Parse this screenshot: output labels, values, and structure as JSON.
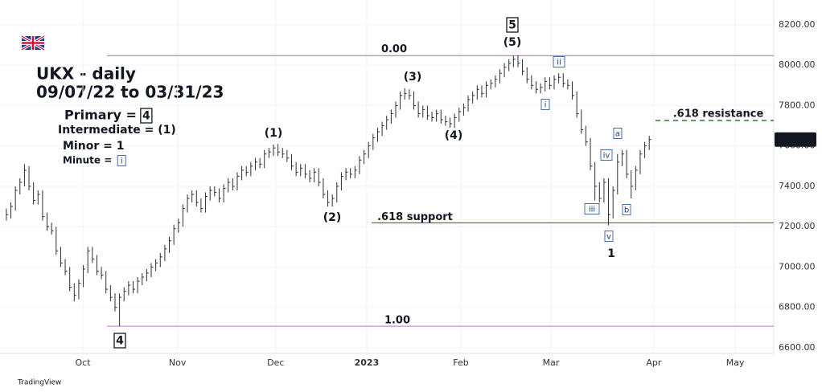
{
  "chart_data": {
    "type": "ohlc",
    "title": "UKX - daily",
    "subtitle": "09/07/22 to 03/31/23",
    "legend_lines": [
      {
        "text": "Primary =",
        "box": "4"
      },
      {
        "text": "Intermediate = (1)"
      },
      {
        "text": "Minor = 1"
      },
      {
        "text": "Minute =",
        "box": "i"
      }
    ],
    "footer": "TradingView",
    "color": "#2a2e39",
    "xlim": [
      -1.4,
      169.5
    ],
    "ylim": [
      6572,
      8323
    ],
    "yticks": [
      {
        "value": 6600,
        "label": "6600.00"
      },
      {
        "value": 6800,
        "label": "6800.00"
      },
      {
        "value": 7000,
        "label": "7000.00"
      },
      {
        "value": 7200,
        "label": "7200.00"
      },
      {
        "value": 7400,
        "label": "7400.00"
      },
      {
        "value": 7600,
        "label": "7600.00"
      },
      {
        "value": 7800,
        "label": "7800.00"
      },
      {
        "value": 8000,
        "label": "8000.00"
      },
      {
        "value": 8200,
        "label": "8200.00"
      }
    ],
    "xticks": [
      {
        "value": 16.9,
        "label": "Oct"
      },
      {
        "value": 37.8,
        "label": "Nov"
      },
      {
        "value": 59.5,
        "label": "Dec"
      },
      {
        "value": 79.6,
        "label": "2023"
      },
      {
        "value": 100.4,
        "label": "Feb"
      },
      {
        "value": 120.3,
        "label": "Mar"
      },
      {
        "value": 143,
        "label": "Apr"
      },
      {
        "value": 161,
        "label": "May"
      }
    ],
    "last_price": 7631.75,
    "levels": [
      {
        "label": "0.00",
        "value": 8047,
        "color": "#c77dd7"
      },
      {
        "label": "1.00",
        "value": 6707,
        "color": "#c77dd7"
      },
      {
        "label": ".618 support",
        "value": 7219,
        "color": "#2e7d32"
      },
      {
        "label": ".618 resistance",
        "value": 7726,
        "color": "#2e7d32",
        "dashed": true
      }
    ],
    "annotations": [
      {
        "text": "5",
        "boxed": true
      },
      {
        "text": "(5)"
      },
      {
        "text": "ii",
        "boxed": true
      },
      {
        "text": "(3)"
      },
      {
        "text": "i",
        "boxed": true
      },
      {
        "text": "a",
        "boxed": true
      },
      {
        "text": "(1)"
      },
      {
        "text": "(4)"
      },
      {
        "text": "iv",
        "boxed": true
      },
      {
        "text": "iii",
        "boxed": true
      },
      {
        "text": "b",
        "boxed": true
      },
      {
        "text": "(2)"
      },
      {
        "text": "v",
        "boxed": true
      },
      {
        "text": "1"
      },
      {
        "text": "4",
        "boxed": true
      }
    ],
    "bars": [
      [
        7290,
        7230,
        7260
      ],
      [
        7320,
        7240,
        7300
      ],
      [
        7400,
        7280,
        7380
      ],
      [
        7440,
        7360,
        7420
      ],
      [
        7510,
        7400,
        7480
      ],
      [
        7500,
        7380,
        7400
      ],
      [
        7420,
        7310,
        7330
      ],
      [
        7380,
        7310,
        7360
      ],
      [
        7380,
        7230,
        7250
      ],
      [
        7270,
        7180,
        7200
      ],
      [
        7220,
        7160,
        7180
      ],
      [
        7200,
        7060,
        7080
      ],
      [
        7100,
        7000,
        7020
      ],
      [
        7040,
        6960,
        6980
      ],
      [
        7000,
        6880,
        6900
      ],
      [
        6920,
        6830,
        6860
      ],
      [
        6940,
        6840,
        6920
      ],
      [
        7010,
        6900,
        6990
      ],
      [
        7100,
        6970,
        7080
      ],
      [
        7100,
        7020,
        7040
      ],
      [
        7060,
        6960,
        6980
      ],
      [
        7000,
        6940,
        6960
      ],
      [
        6980,
        6870,
        6890
      ],
      [
        6910,
        6830,
        6850
      ],
      [
        6870,
        6780,
        6800
      ],
      [
        6870,
        6707,
        6850
      ],
      [
        6900,
        6830,
        6880
      ],
      [
        6930,
        6860,
        6910
      ],
      [
        6930,
        6870,
        6890
      ],
      [
        6950,
        6870,
        6930
      ],
      [
        6970,
        6910,
        6950
      ],
      [
        6990,
        6930,
        6970
      ],
      [
        7020,
        6950,
        7000
      ],
      [
        7040,
        6980,
        7020
      ],
      [
        7070,
        7000,
        7050
      ],
      [
        7110,
        7030,
        7090
      ],
      [
        7150,
        7070,
        7130
      ],
      [
        7210,
        7110,
        7190
      ],
      [
        7240,
        7170,
        7220
      ],
      [
        7310,
        7200,
        7290
      ],
      [
        7360,
        7270,
        7340
      ],
      [
        7380,
        7320,
        7360
      ],
      [
        7380,
        7300,
        7320
      ],
      [
        7340,
        7270,
        7290
      ],
      [
        7370,
        7270,
        7350
      ],
      [
        7400,
        7330,
        7380
      ],
      [
        7400,
        7350,
        7370
      ],
      [
        7390,
        7320,
        7340
      ],
      [
        7410,
        7320,
        7390
      ],
      [
        7440,
        7370,
        7420
      ],
      [
        7440,
        7380,
        7400
      ],
      [
        7470,
        7380,
        7450
      ],
      [
        7500,
        7430,
        7480
      ],
      [
        7500,
        7450,
        7470
      ],
      [
        7520,
        7450,
        7500
      ],
      [
        7540,
        7480,
        7520
      ],
      [
        7540,
        7490,
        7510
      ],
      [
        7580,
        7490,
        7560
      ],
      [
        7590,
        7540,
        7570
      ],
      [
        7607,
        7550,
        7590
      ],
      [
        7610,
        7550,
        7570
      ],
      [
        7590,
        7540,
        7560
      ],
      [
        7580,
        7520,
        7540
      ],
      [
        7560,
        7480,
        7500
      ],
      [
        7520,
        7450,
        7470
      ],
      [
        7510,
        7450,
        7490
      ],
      [
        7510,
        7440,
        7460
      ],
      [
        7480,
        7420,
        7440
      ],
      [
        7490,
        7420,
        7470
      ],
      [
        7490,
        7400,
        7420
      ],
      [
        7440,
        7340,
        7360
      ],
      [
        7380,
        7300,
        7320
      ],
      [
        7360,
        7300,
        7340
      ],
      [
        7420,
        7320,
        7400
      ],
      [
        7470,
        7380,
        7450
      ],
      [
        7490,
        7430,
        7470
      ],
      [
        7490,
        7440,
        7460
      ],
      [
        7500,
        7440,
        7480
      ],
      [
        7550,
        7460,
        7530
      ],
      [
        7580,
        7510,
        7560
      ],
      [
        7620,
        7540,
        7600
      ],
      [
        7660,
        7580,
        7640
      ],
      [
        7690,
        7620,
        7670
      ],
      [
        7720,
        7650,
        7700
      ],
      [
        7750,
        7680,
        7730
      ],
      [
        7780,
        7710,
        7760
      ],
      [
        7820,
        7740,
        7800
      ],
      [
        7870,
        7780,
        7850
      ],
      [
        7886,
        7830,
        7860
      ],
      [
        7880,
        7830,
        7850
      ],
      [
        7870,
        7780,
        7800
      ],
      [
        7820,
        7740,
        7760
      ],
      [
        7800,
        7740,
        7780
      ],
      [
        7800,
        7730,
        7750
      ],
      [
        7770,
        7720,
        7740
      ],
      [
        7780,
        7720,
        7760
      ],
      [
        7780,
        7710,
        7730
      ],
      [
        7750,
        7700,
        7720
      ],
      [
        7740,
        7690,
        7710
      ],
      [
        7760,
        7690,
        7740
      ],
      [
        7790,
        7720,
        7770
      ],
      [
        7810,
        7750,
        7790
      ],
      [
        7850,
        7770,
        7830
      ],
      [
        7870,
        7810,
        7850
      ],
      [
        7900,
        7830,
        7880
      ],
      [
        7900,
        7840,
        7860
      ],
      [
        7920,
        7840,
        7900
      ],
      [
        7930,
        7880,
        7910
      ],
      [
        7950,
        7890,
        7930
      ],
      [
        7980,
        7910,
        7960
      ],
      [
        8010,
        7940,
        7990
      ],
      [
        8030,
        7970,
        8010
      ],
      [
        8047,
        7990,
        8030
      ],
      [
        8050,
        7990,
        8010
      ],
      [
        8030,
        7950,
        7970
      ],
      [
        7990,
        7910,
        7930
      ],
      [
        7950,
        7880,
        7900
      ],
      [
        7920,
        7860,
        7880
      ],
      [
        7910,
        7860,
        7890
      ],
      [
        7940,
        7870,
        7920
      ],
      [
        7940,
        7880,
        7900
      ],
      [
        7950,
        7880,
        7930
      ],
      [
        7960,
        7910,
        7940
      ],
      [
        7960,
        7890,
        7910
      ],
      [
        7930,
        7880,
        7900
      ],
      [
        7920,
        7830,
        7850
      ],
      [
        7870,
        7740,
        7760
      ],
      [
        7780,
        7660,
        7680
      ],
      [
        7700,
        7600,
        7620
      ],
      [
        7640,
        7480,
        7500
      ],
      [
        7520,
        7330,
        7400
      ],
      [
        7420,
        7320,
        7340
      ],
      [
        7440,
        7320,
        7420
      ],
      [
        7440,
        7206,
        7260
      ],
      [
        7400,
        7240,
        7380
      ],
      [
        7560,
        7360,
        7520
      ],
      [
        7580,
        7500,
        7560
      ],
      [
        7580,
        7440,
        7460
      ],
      [
        7480,
        7340,
        7400
      ],
      [
        7500,
        7380,
        7480
      ],
      [
        7580,
        7460,
        7560
      ],
      [
        7620,
        7540,
        7600
      ],
      [
        7650,
        7580,
        7631.75
      ]
    ]
  }
}
